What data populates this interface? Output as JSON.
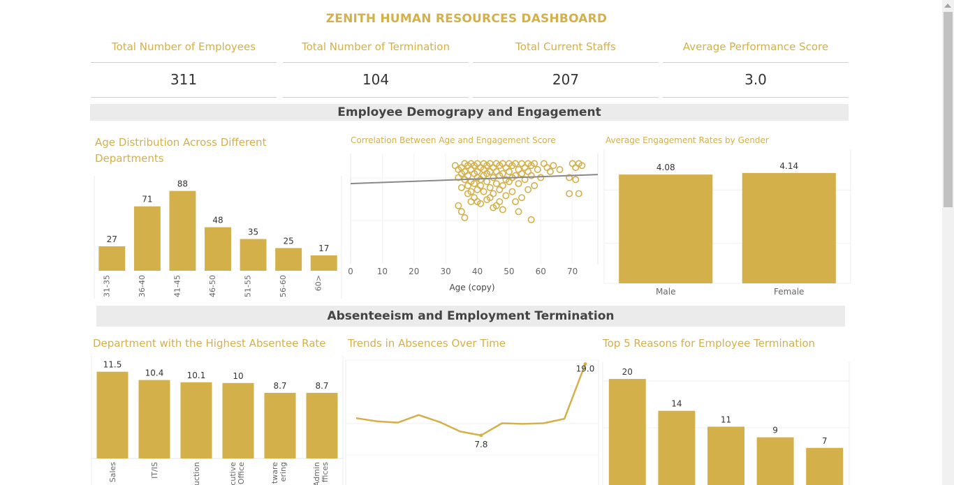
{
  "title": "ZENITH HUMAN RESOURCES DASHBOARD",
  "kpis": [
    {
      "label": "Total Number of Employees",
      "value": "311"
    },
    {
      "label": "Total Number of Termination",
      "value": "104"
    },
    {
      "label": "Total Current Staffs",
      "value": "207"
    },
    {
      "label": "Average Performance Score",
      "value": "3.0"
    }
  ],
  "sections": {
    "demography": "Employee Demograpy and Engagement",
    "absenteeism": "Absenteeism and Employment Termination"
  },
  "colors": {
    "accent": "#D4B04A",
    "trend": "#888888",
    "band": "#ebebeb"
  },
  "chart_data": [
    {
      "id": "age-dist",
      "type": "bar",
      "title": "Age Distribution Across Different Departments",
      "categories": [
        "31-35",
        "36-40",
        "41-45",
        "46-50",
        "51-55",
        "56-60",
        "60>"
      ],
      "values": [
        27,
        71,
        88,
        48,
        35,
        25,
        17
      ],
      "ylim": [
        0,
        100
      ]
    },
    {
      "id": "age-engagement",
      "type": "scatter",
      "title": "Correlation Between Age and Engagement Score",
      "xlabel": "Age (copy)",
      "xlim": [
        0,
        78
      ],
      "ylim": [
        0,
        5.5
      ],
      "xticks": [
        0,
        10,
        20,
        30,
        40,
        50,
        60,
        70
      ],
      "trend": {
        "x0": 0,
        "y0": 4.0,
        "x1": 78,
        "y1": 4.45
      },
      "points": [
        [
          33,
          4.9
        ],
        [
          34,
          4.7
        ],
        [
          34,
          4.3
        ],
        [
          35,
          4.8
        ],
        [
          35,
          4.5
        ],
        [
          35,
          3.8
        ],
        [
          36,
          5.0
        ],
        [
          36,
          4.6
        ],
        [
          36,
          4.2
        ],
        [
          37,
          4.9
        ],
        [
          37,
          4.4
        ],
        [
          37,
          3.9
        ],
        [
          37,
          3.5
        ],
        [
          38,
          5.0
        ],
        [
          38,
          4.7
        ],
        [
          38,
          4.1
        ],
        [
          38,
          3.6
        ],
        [
          39,
          4.9
        ],
        [
          39,
          4.5
        ],
        [
          39,
          4.0
        ],
        [
          39,
          3.3
        ],
        [
          40,
          5.0
        ],
        [
          40,
          4.6
        ],
        [
          40,
          4.3
        ],
        [
          40,
          3.7
        ],
        [
          41,
          4.8
        ],
        [
          41,
          4.2
        ],
        [
          41,
          3.9
        ],
        [
          41,
          3.0
        ],
        [
          42,
          5.0
        ],
        [
          42,
          4.7
        ],
        [
          42,
          4.4
        ],
        [
          42,
          3.6
        ],
        [
          43,
          4.9
        ],
        [
          43,
          4.5
        ],
        [
          43,
          4.1
        ],
        [
          43,
          3.2
        ],
        [
          44,
          5.0
        ],
        [
          44,
          4.6
        ],
        [
          44,
          3.8
        ],
        [
          45,
          4.8
        ],
        [
          45,
          4.3
        ],
        [
          45,
          3.5
        ],
        [
          46,
          5.0
        ],
        [
          46,
          4.6
        ],
        [
          46,
          4.0
        ],
        [
          46,
          2.9
        ],
        [
          47,
          4.9
        ],
        [
          47,
          4.4
        ],
        [
          47,
          3.7
        ],
        [
          48,
          5.0
        ],
        [
          48,
          4.5
        ],
        [
          48,
          3.9
        ],
        [
          48,
          2.7
        ],
        [
          49,
          4.8
        ],
        [
          49,
          4.2
        ],
        [
          49,
          3.4
        ],
        [
          50,
          5.0
        ],
        [
          50,
          4.6
        ],
        [
          50,
          4.1
        ],
        [
          51,
          4.9
        ],
        [
          51,
          4.3
        ],
        [
          51,
          3.6
        ],
        [
          52,
          5.0
        ],
        [
          52,
          4.4
        ],
        [
          53,
          4.7
        ],
        [
          53,
          4.0
        ],
        [
          54,
          5.0
        ],
        [
          54,
          4.5
        ],
        [
          54,
          3.3
        ],
        [
          55,
          4.8
        ],
        [
          55,
          4.2
        ],
        [
          56,
          5.0
        ],
        [
          56,
          4.6
        ],
        [
          56,
          3.7
        ],
        [
          57,
          4.9
        ],
        [
          57,
          4.4
        ],
        [
          58,
          5.0
        ],
        [
          58,
          3.9
        ],
        [
          59,
          4.7
        ],
        [
          60,
          4.3
        ],
        [
          61,
          5.0
        ],
        [
          62,
          4.8
        ],
        [
          63,
          4.6
        ],
        [
          64,
          4.9
        ],
        [
          66,
          4.7
        ],
        [
          69,
          4.3
        ],
        [
          69,
          3.5
        ],
        [
          70,
          5.0
        ],
        [
          71,
          4.8
        ],
        [
          71,
          4.2
        ],
        [
          72,
          5.0
        ],
        [
          72,
          3.5
        ],
        [
          73,
          4.9
        ],
        [
          34,
          2.9
        ],
        [
          35,
          2.6
        ],
        [
          36,
          2.3
        ],
        [
          40,
          3.1
        ],
        [
          45,
          2.8
        ],
        [
          57,
          2.2
        ],
        [
          53,
          2.6
        ],
        [
          38,
          3.1
        ],
        [
          52,
          3.1
        ],
        [
          44,
          3.3
        ],
        [
          47,
          3.1
        ]
      ]
    },
    {
      "id": "gender-engagement",
      "type": "bar",
      "title": "Average Engagement Rates by Gender",
      "categories": [
        "Male",
        "Female"
      ],
      "values": [
        4.08,
        4.14
      ],
      "ylim": [
        0,
        5.0
      ]
    },
    {
      "id": "dept-absentee",
      "type": "bar",
      "title": "Department with the Highest Absentee Rate",
      "categories": [
        "Sales",
        "IT/IS",
        "Production",
        "Executive Office",
        "Software Engineering",
        "Admin Offices"
      ],
      "tick_text": [
        "Sales",
        "IT/IS",
        "uction",
        [
          "cutive",
          "Office"
        ],
        [
          "tware",
          "ering"
        ],
        [
          "Admin",
          "ffices"
        ]
      ],
      "values": [
        11.5,
        10.4,
        10.1,
        10.0,
        8.7,
        8.7
      ],
      "ylim": [
        0,
        12.3
      ]
    },
    {
      "id": "absence-trend",
      "type": "line",
      "title": "Trends in Absences Over Time",
      "values": [
        10.5,
        10.0,
        9.8,
        11.0,
        9.9,
        8.4,
        7.8,
        9.7,
        9.6,
        9.7,
        10.4,
        19.0
      ],
      "labels": {
        "6": "7.8",
        "11": "19.0"
      },
      "ylim": [
        0,
        19.4
      ]
    },
    {
      "id": "termination-reasons",
      "type": "bar",
      "title": "Top 5 Reasons for Employee Termination",
      "categories": [
        "",
        "",
        "",
        "",
        ""
      ],
      "values": [
        20,
        14,
        11,
        9,
        7
      ],
      "ylim": [
        0,
        23.3
      ]
    }
  ]
}
